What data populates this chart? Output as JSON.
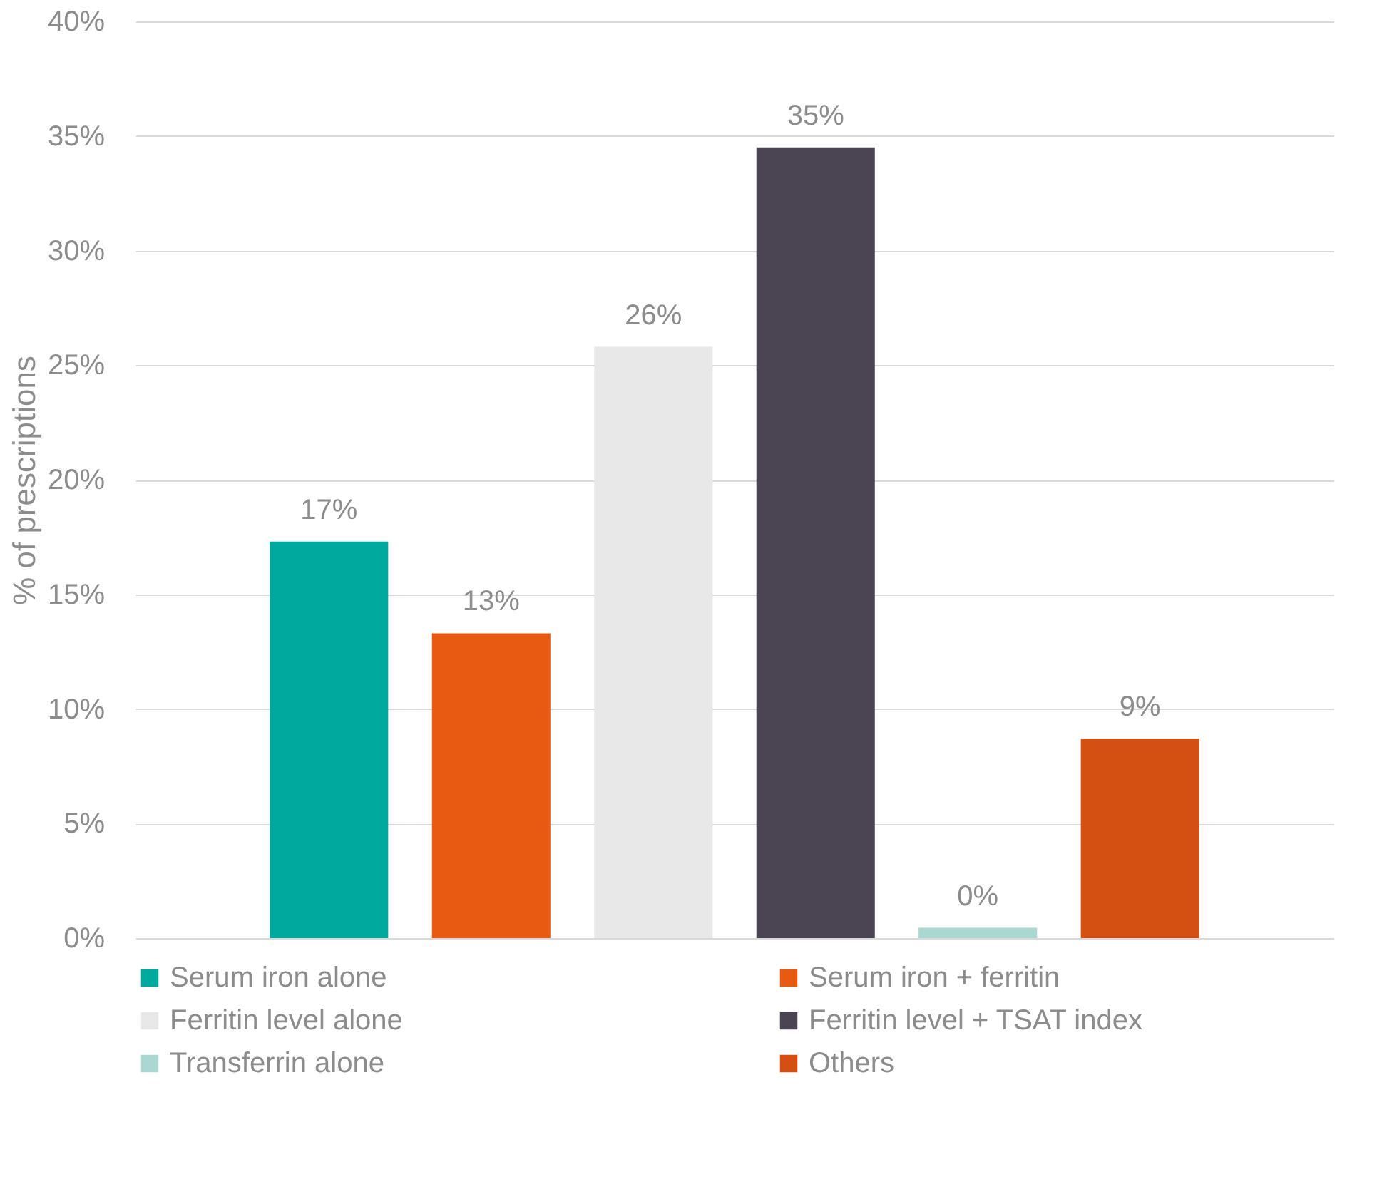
{
  "chart_data": {
    "type": "bar",
    "ylabel": "% of prescriptions",
    "categories": [
      null
    ],
    "series": [
      {
        "name": "Serum iron alone",
        "color": "#00a99d",
        "values": [
          17.3
        ],
        "value_labels": [
          "17%"
        ]
      },
      {
        "name": "Serum iron + ferritin",
        "color": "#e85a12",
        "values": [
          13.3
        ],
        "value_labels": [
          "13%"
        ]
      },
      {
        "name": "Ferritin level alone",
        "color": "#e8e8e8",
        "values": [
          25.8
        ],
        "value_labels": [
          "26%"
        ]
      },
      {
        "name": "Ferritin level + TSAT index",
        "color": "#4a4453",
        "values": [
          34.5
        ],
        "value_labels": [
          "35%"
        ]
      },
      {
        "name": "Transferrin alone",
        "color": "#a8d8d0",
        "values": [
          0.45
        ],
        "value_labels": [
          "0%"
        ]
      },
      {
        "name": "Others",
        "color": "#d35012",
        "values": [
          8.7
        ],
        "value_labels": [
          "9%"
        ]
      }
    ],
    "ylim": [
      0,
      40
    ],
    "yticks": [
      {
        "value": 0,
        "label": "0%"
      },
      {
        "value": 5,
        "label": "5%"
      },
      {
        "value": 10,
        "label": "10%"
      },
      {
        "value": 15,
        "label": "15%"
      },
      {
        "value": 20,
        "label": "20%"
      },
      {
        "value": 25,
        "label": "25%"
      },
      {
        "value": 30,
        "label": "30%"
      },
      {
        "value": 35,
        "label": "35%"
      },
      {
        "value": 40,
        "label": "40%"
      }
    ],
    "grid": "y",
    "legend": "bottom",
    "tick_labels": "y"
  }
}
